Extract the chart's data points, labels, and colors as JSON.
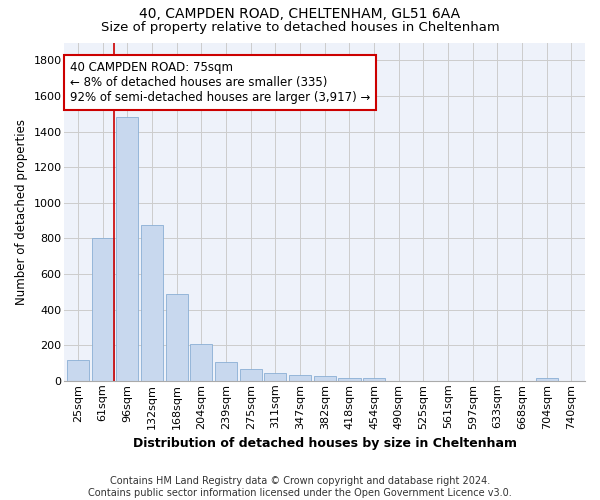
{
  "title": "40, CAMPDEN ROAD, CHELTENHAM, GL51 6AA",
  "subtitle": "Size of property relative to detached houses in Cheltenham",
  "xlabel": "Distribution of detached houses by size in Cheltenham",
  "ylabel": "Number of detached properties",
  "categories": [
    "25sqm",
    "61sqm",
    "96sqm",
    "132sqm",
    "168sqm",
    "204sqm",
    "239sqm",
    "275sqm",
    "311sqm",
    "347sqm",
    "382sqm",
    "418sqm",
    "454sqm",
    "490sqm",
    "525sqm",
    "561sqm",
    "597sqm",
    "633sqm",
    "668sqm",
    "704sqm",
    "740sqm"
  ],
  "values": [
    120,
    800,
    1480,
    875,
    490,
    205,
    105,
    65,
    45,
    35,
    25,
    15,
    15,
    0,
    0,
    0,
    0,
    0,
    0,
    15,
    0
  ],
  "bar_color": "#c8d8ee",
  "bar_edge_color": "#8aafd4",
  "vline_color": "#cc0000",
  "annotation_text": "40 CAMPDEN ROAD: 75sqm\n← 8% of detached houses are smaller (335)\n92% of semi-detached houses are larger (3,917) →",
  "annotation_box_facecolor": "white",
  "annotation_box_edgecolor": "#cc0000",
  "ylim": [
    0,
    1900
  ],
  "yticks": [
    0,
    200,
    400,
    600,
    800,
    1000,
    1200,
    1400,
    1600,
    1800
  ],
  "grid_color": "#cccccc",
  "axes_bg_color": "#eef2fa",
  "footer_text": "Contains HM Land Registry data © Crown copyright and database right 2024.\nContains public sector information licensed under the Open Government Licence v3.0.",
  "title_fontsize": 10,
  "subtitle_fontsize": 9.5,
  "xlabel_fontsize": 9,
  "ylabel_fontsize": 8.5,
  "tick_fontsize": 8,
  "annotation_fontsize": 8.5,
  "footer_fontsize": 7
}
